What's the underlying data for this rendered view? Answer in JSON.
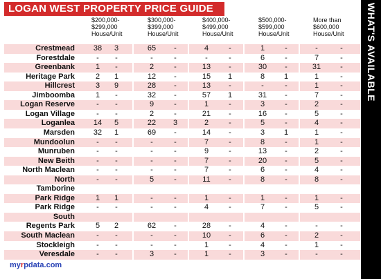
{
  "title": "LOGAN WEST PROPERTY PRICE GUIDE",
  "side_label": "WHAT'S AVAILABLE",
  "columns": [
    "$200,000-\n$299,000\nHouse/Unit",
    "$300,000-\n$399,000\nHouse/Unit",
    "$400,000-\n$499,000\nHouse/Unit",
    "$500,000-\n$599,000\nHouse/Unit",
    "More than\n$600,000\nHouse/Unit"
  ],
  "rows": [
    {
      "suburb": "Crestmead",
      "values": [
        "38",
        "3",
        "65",
        "-",
        "4",
        "-",
        "1",
        "-",
        "-",
        "-"
      ]
    },
    {
      "suburb": "Forestdale",
      "values": [
        "-",
        "-",
        "-",
        "-",
        "-",
        "-",
        "6",
        "-",
        "7",
        "-"
      ]
    },
    {
      "suburb": "Greenbank",
      "values": [
        "1",
        "-",
        "2",
        "-",
        "13",
        "-",
        "30",
        "-",
        "31",
        "-"
      ]
    },
    {
      "suburb": "Heritage Park",
      "values": [
        "2",
        "1",
        "12",
        "-",
        "15",
        "1",
        "8",
        "1",
        "1",
        "-"
      ]
    },
    {
      "suburb": "Hillcrest",
      "values": [
        "3",
        "9",
        "28",
        "-",
        "13",
        "-",
        "-",
        "-",
        "1",
        "-"
      ]
    },
    {
      "suburb": "Jimboomba",
      "values": [
        "1",
        "-",
        "32",
        "-",
        "57",
        "1",
        "31",
        "-",
        "7",
        "-"
      ]
    },
    {
      "suburb": "Logan Reserve",
      "values": [
        "-",
        "-",
        "9",
        "-",
        "1",
        "-",
        "3",
        "-",
        "2",
        "-"
      ]
    },
    {
      "suburb": "Logan Village",
      "values": [
        "-",
        "-",
        "2",
        "-",
        "21",
        "-",
        "16",
        "-",
        "5",
        "-"
      ]
    },
    {
      "suburb": "Loganlea",
      "values": [
        "14",
        "5",
        "22",
        "3",
        "2",
        "-",
        "5",
        "-",
        "4",
        "-"
      ]
    },
    {
      "suburb": "Marsden",
      "values": [
        "32",
        "1",
        "69",
        "-",
        "14",
        "-",
        "3",
        "1",
        "1",
        "-"
      ]
    },
    {
      "suburb": "Mundoolun",
      "values": [
        "-",
        "-",
        "-",
        "-",
        "7",
        "-",
        "8",
        "-",
        "1",
        "-"
      ]
    },
    {
      "suburb": "Munruben",
      "values": [
        "-",
        "-",
        "-",
        "-",
        "9",
        "-",
        "13",
        "-",
        "2",
        "-"
      ]
    },
    {
      "suburb": "New Beith",
      "values": [
        "-",
        "-",
        "-",
        "-",
        "7",
        "-",
        "20",
        "-",
        "5",
        "-"
      ]
    },
    {
      "suburb": "North Maclean",
      "values": [
        "-",
        "-",
        "-",
        "-",
        "7",
        "-",
        "6",
        "-",
        "4",
        "-"
      ]
    },
    {
      "suburb": "North",
      "values": [
        "-",
        "-",
        "5",
        "-",
        "11",
        "-",
        "8",
        "-",
        "8",
        "-"
      ]
    },
    {
      "suburb": "Tamborine",
      "values": [
        "",
        "",
        "",
        "",
        "",
        "",
        "",
        "",
        "",
        ""
      ]
    },
    {
      "suburb": "Park Ridge",
      "values": [
        "1",
        "1",
        "-",
        "-",
        "1",
        "-",
        "1",
        "-",
        "1",
        "-"
      ]
    },
    {
      "suburb": "Park Ridge",
      "values": [
        "-",
        "-",
        "-",
        "-",
        "4",
        "-",
        "7",
        "-",
        "5",
        "-"
      ]
    },
    {
      "suburb": "South",
      "values": [
        "",
        "",
        "",
        "",
        "",
        "",
        "",
        "",
        "",
        ""
      ]
    },
    {
      "suburb": "Regents Park",
      "values": [
        "5",
        "2",
        "62",
        "-",
        "28",
        "-",
        "4",
        "-",
        "-",
        "-"
      ]
    },
    {
      "suburb": "South Maclean",
      "values": [
        "-",
        "-",
        "-",
        "-",
        "10",
        "-",
        "6",
        "-",
        "2",
        "-"
      ]
    },
    {
      "suburb": "Stockleigh",
      "values": [
        "-",
        "-",
        "-",
        "-",
        "1",
        "-",
        "4",
        "-",
        "1",
        "-"
      ]
    },
    {
      "suburb": "Veresdale",
      "values": [
        "-",
        "-",
        "3",
        "-",
        "1",
        "-",
        "3",
        "-",
        "-",
        "-"
      ]
    }
  ],
  "footer": {
    "brand_main": "my",
    "brand_r": "r",
    "brand_rest": "pdata.com"
  },
  "colors": {
    "accent": "#d32b2b",
    "stripe": "#f9dada",
    "side_tab": "#000000"
  }
}
